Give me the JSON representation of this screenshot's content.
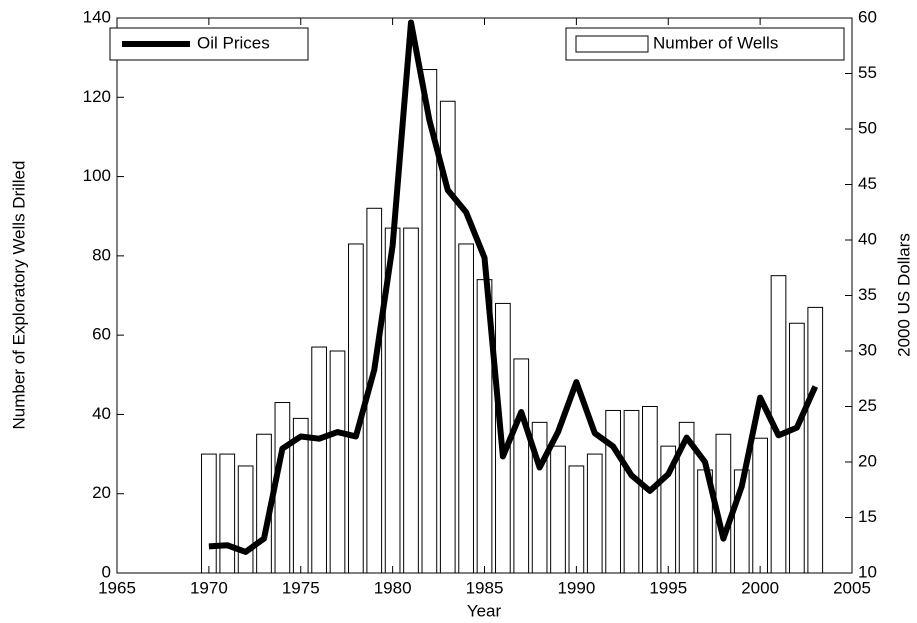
{
  "chart_data": {
    "type": "bar",
    "xlabel": "Year",
    "ylabel": "Number of Exploratory Wells Drilled",
    "y2label": "2000 US Dollars",
    "x": [
      1970,
      1971,
      1972,
      1973,
      1974,
      1975,
      1976,
      1977,
      1978,
      1979,
      1980,
      1981,
      1982,
      1983,
      1984,
      1985,
      1986,
      1987,
      1988,
      1989,
      1990,
      1991,
      1992,
      1993,
      1994,
      1995,
      1996,
      1997,
      1998,
      1999,
      2000,
      2001,
      2002,
      2003
    ],
    "series": [
      {
        "name": "Number of Wells",
        "type": "bar",
        "color": "#ffffff",
        "legend": "upper right",
        "values": [
          30,
          30,
          27,
          35,
          43,
          39,
          57,
          56,
          83,
          92,
          87,
          87,
          127,
          119,
          83,
          74,
          68,
          54,
          38,
          32,
          27,
          30,
          41,
          41,
          42,
          32,
          38,
          26,
          35,
          26,
          34,
          75,
          63,
          67
        ]
      },
      {
        "name": "Oil Prices",
        "type": "line",
        "axis": "y2",
        "color": "#000000",
        "legend": "upper left",
        "values": [
          12.4,
          12.5,
          11.9,
          13.1,
          21.2,
          22.3,
          22.1,
          22.7,
          22.3,
          28.3,
          39.5,
          59.6,
          50.8,
          44.5,
          42.5,
          38.4,
          20.5,
          24.5,
          19.5,
          22.7,
          27.2,
          22.6,
          21.4,
          18.8,
          17.4,
          18.9,
          22.2,
          20.0,
          13.1,
          17.8,
          25.8,
          22.4,
          23.1,
          26.8
        ]
      }
    ],
    "xlim": [
      1965,
      2005
    ],
    "xticks": [
      1965,
      1970,
      1975,
      1980,
      1985,
      1990,
      1995,
      2000,
      2005
    ],
    "ylim": [
      0,
      140
    ],
    "yticks": [
      0,
      20,
      40,
      60,
      80,
      100,
      120,
      140
    ],
    "y2lim": [
      10,
      60
    ],
    "y2ticks": [
      10,
      15,
      20,
      25,
      30,
      35,
      40,
      45,
      50,
      55,
      60
    ],
    "grid": false
  }
}
